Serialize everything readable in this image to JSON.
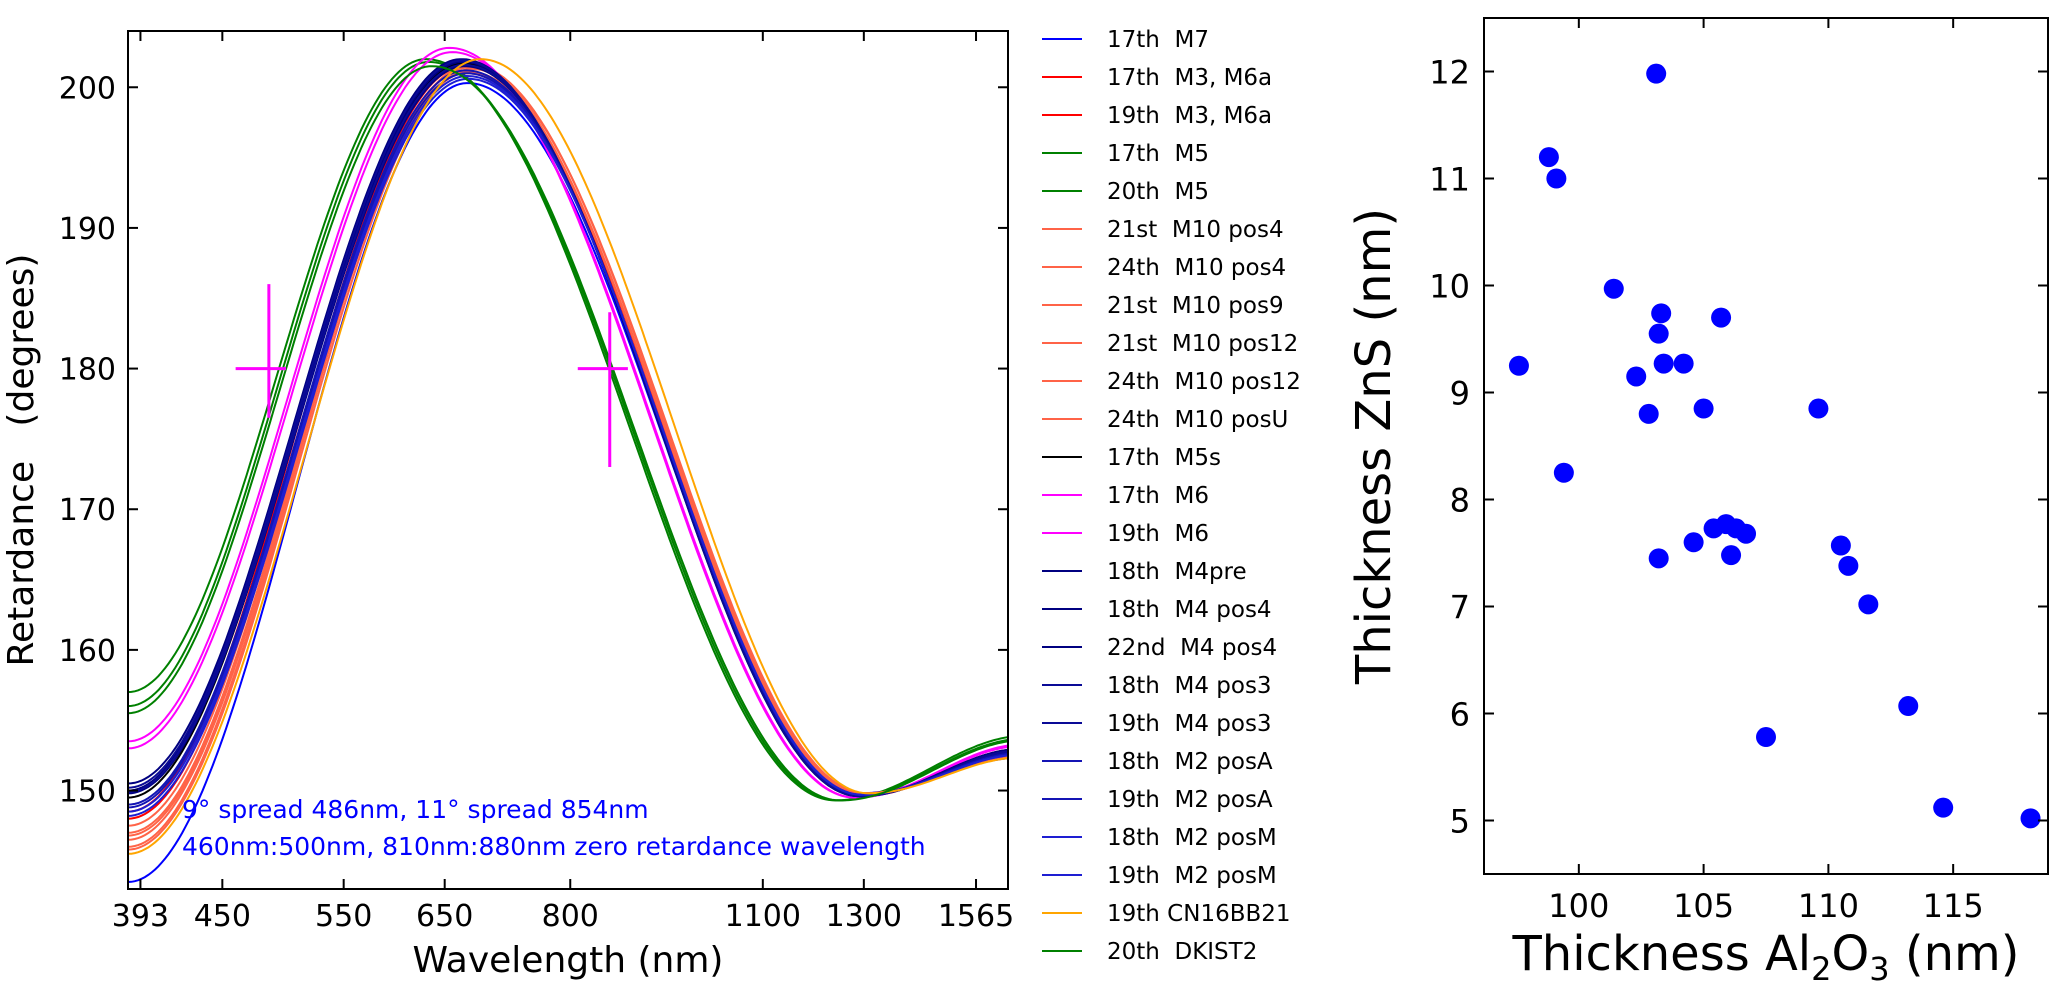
{
  "chart_data": [
    {
      "type": "line",
      "xscale": "log",
      "xlabel": "Wavelength (nm)",
      "ylabel": "Retardance   (degrees)",
      "xlim": [
        385,
        1650
      ],
      "ylim": [
        143,
        204
      ],
      "xticks": [
        393,
        450,
        550,
        650,
        800,
        1100,
        1300,
        1565
      ],
      "yticks": [
        150,
        160,
        170,
        180,
        190,
        200
      ],
      "annotations": [
        "9° spread 486nm, 11° spread 854nm",
        "460nm:500nm, 810nm:880nm  zero retardance wavelength"
      ],
      "markers": [
        {
          "name": "zero-retardance cross 486nm",
          "x": 486,
          "y": 180,
          "x_range": [
            460,
            500
          ],
          "y_range": [
            176.5,
            186
          ]
        },
        {
          "name": "zero-retardance cross 854nm",
          "x": 854,
          "y": 180,
          "x_range": [
            810,
            880
          ],
          "y_range": [
            173,
            184
          ]
        }
      ],
      "series": [
        {
          "name": "17th  M7",
          "color": "#0000ff",
          "peak_wl": 675,
          "peak": 200.3,
          "trough_wl": 1290,
          "trough": 149.8,
          "start": 143.5,
          "end": 152.3
        },
        {
          "name": "17th  M3, M6a",
          "color": "#ff0000",
          "peak_wl": 668,
          "peak": 201.8,
          "trough_wl": 1295,
          "trough": 149.6,
          "start": 148.5,
          "end": 152.8
        },
        {
          "name": "19th  M3, M6a",
          "color": "#ff0000",
          "peak_wl": 672,
          "peak": 201.5,
          "trough_wl": 1300,
          "trough": 149.7,
          "start": 148.0,
          "end": 152.6
        },
        {
          "name": "17th  M5",
          "color": "#008000",
          "peak_wl": 630,
          "peak": 202.0,
          "trough_wl": 1240,
          "trough": 149.3,
          "start": 157.0,
          "end": 153.8
        },
        {
          "name": "20th  M5",
          "color": "#008000",
          "peak_wl": 633,
          "peak": 201.8,
          "trough_wl": 1245,
          "trough": 149.3,
          "start": 156.0,
          "end": 153.6
        },
        {
          "name": "21st  M10 pos4",
          "color": "#ff6347",
          "peak_wl": 672,
          "peak": 201.2,
          "trough_wl": 1295,
          "trough": 149.7,
          "start": 147.5,
          "end": 152.7
        },
        {
          "name": "24th  M10 pos4",
          "color": "#ff6347",
          "peak_wl": 674,
          "peak": 201.0,
          "trough_wl": 1297,
          "trough": 149.7,
          "start": 147.0,
          "end": 152.6
        },
        {
          "name": "21st  M10 pos9",
          "color": "#ff6347",
          "peak_wl": 676,
          "peak": 201.4,
          "trough_wl": 1300,
          "trough": 149.8,
          "start": 146.5,
          "end": 152.5
        },
        {
          "name": "21st  M10 pos12",
          "color": "#ff6347",
          "peak_wl": 678,
          "peak": 201.6,
          "trough_wl": 1302,
          "trough": 149.8,
          "start": 146.0,
          "end": 152.5
        },
        {
          "name": "24th  M10 pos12",
          "color": "#ff6347",
          "peak_wl": 680,
          "peak": 201.3,
          "trough_wl": 1305,
          "trough": 149.8,
          "start": 145.8,
          "end": 152.4
        },
        {
          "name": "24th  M10 posU",
          "color": "#ff6347",
          "peak_wl": 677,
          "peak": 201.1,
          "trough_wl": 1300,
          "trough": 149.7,
          "start": 146.8,
          "end": 152.5
        },
        {
          "name": "17th  M5s",
          "color": "#000000",
          "peak_wl": 670,
          "peak": 201.7,
          "trough_wl": 1290,
          "trough": 149.6,
          "start": 149.5,
          "end": 152.9
        },
        {
          "name": "17th  M6",
          "color": "#ff00ff",
          "peak_wl": 655,
          "peak": 202.8,
          "trough_wl": 1280,
          "trough": 149.5,
          "start": 153.5,
          "end": 153.2
        },
        {
          "name": "19th  M6",
          "color": "#ff00ff",
          "peak_wl": 658,
          "peak": 202.5,
          "trough_wl": 1282,
          "trough": 149.5,
          "start": 153.0,
          "end": 153.1
        },
        {
          "name": "18th  M4pre",
          "color": "#000080",
          "peak_wl": 668,
          "peak": 202.0,
          "trough_wl": 1290,
          "trough": 149.6,
          "start": 150.5,
          "end": 152.9
        },
        {
          "name": "18th  M4 pos4",
          "color": "#000080",
          "peak_wl": 670,
          "peak": 201.8,
          "trough_wl": 1292,
          "trough": 149.6,
          "start": 150.0,
          "end": 152.8
        },
        {
          "name": "22nd  M4 pos4",
          "color": "#000080",
          "peak_wl": 672,
          "peak": 201.5,
          "trough_wl": 1293,
          "trough": 149.6,
          "start": 149.8,
          "end": 152.8
        },
        {
          "name": "18th  M4 pos3",
          "color": "#0a0a96",
          "peak_wl": 669,
          "peak": 201.9,
          "trough_wl": 1291,
          "trough": 149.6,
          "start": 150.2,
          "end": 152.8
        },
        {
          "name": "19th  M4 pos3",
          "color": "#0a0a96",
          "peak_wl": 671,
          "peak": 201.6,
          "trough_wl": 1292,
          "trough": 149.6,
          "start": 149.9,
          "end": 152.7
        },
        {
          "name": "18th  M2 posA",
          "color": "#1414b4",
          "peak_wl": 673,
          "peak": 201.2,
          "trough_wl": 1294,
          "trough": 149.7,
          "start": 149.0,
          "end": 152.6
        },
        {
          "name": "19th  M2 posA",
          "color": "#1414b4",
          "peak_wl": 674,
          "peak": 201.0,
          "trough_wl": 1295,
          "trough": 149.7,
          "start": 148.8,
          "end": 152.6
        },
        {
          "name": "18th  M2 posM",
          "color": "#1e1ed2",
          "peak_wl": 675,
          "peak": 200.8,
          "trough_wl": 1296,
          "trough": 149.7,
          "start": 148.5,
          "end": 152.5
        },
        {
          "name": "19th  M2 posM",
          "color": "#1e1ed2",
          "peak_wl": 676,
          "peak": 200.6,
          "trough_wl": 1297,
          "trough": 149.7,
          "start": 148.2,
          "end": 152.5
        },
        {
          "name": "19th CN16BB21",
          "color": "#ffa500",
          "peak_wl": 690,
          "peak": 202.0,
          "trough_wl": 1310,
          "trough": 149.8,
          "start": 145.5,
          "end": 152.3
        },
        {
          "name": "20th  DKIST2",
          "color": "#008000",
          "peak_wl": 636,
          "peak": 201.5,
          "trough_wl": 1250,
          "trough": 149.3,
          "start": 155.5,
          "end": 153.5
        }
      ]
    },
    {
      "type": "scatter",
      "xlabel_prefix": "Thickness Al",
      "xlabel_sub1": "2",
      "xlabel_mid": "O",
      "xlabel_sub2": "3",
      "xlabel_suffix": " (nm)",
      "ylabel": "Thickness ZnS (nm)",
      "xlim": [
        96.2,
        118.8
      ],
      "ylim": [
        4.5,
        12.5
      ],
      "xticks": [
        100,
        105,
        110,
        115
      ],
      "yticks": [
        5,
        6,
        7,
        8,
        9,
        10,
        11,
        12
      ],
      "marker_color": "#0000ff",
      "points": [
        {
          "x": 97.6,
          "y": 9.25
        },
        {
          "x": 98.8,
          "y": 11.2
        },
        {
          "x": 99.1,
          "y": 11.0
        },
        {
          "x": 99.4,
          "y": 8.25
        },
        {
          "x": 101.4,
          "y": 9.97
        },
        {
          "x": 102.3,
          "y": 9.15
        },
        {
          "x": 102.8,
          "y": 8.8
        },
        {
          "x": 103.1,
          "y": 11.98
        },
        {
          "x": 103.2,
          "y": 9.55
        },
        {
          "x": 103.3,
          "y": 9.74
        },
        {
          "x": 103.2,
          "y": 7.45
        },
        {
          "x": 103.4,
          "y": 9.27
        },
        {
          "x": 104.2,
          "y": 9.27
        },
        {
          "x": 104.6,
          "y": 7.6
        },
        {
          "x": 105.0,
          "y": 8.85
        },
        {
          "x": 105.4,
          "y": 7.73
        },
        {
          "x": 105.7,
          "y": 9.7
        },
        {
          "x": 105.9,
          "y": 7.77
        },
        {
          "x": 106.1,
          "y": 7.48
        },
        {
          "x": 106.3,
          "y": 7.73
        },
        {
          "x": 106.7,
          "y": 7.68
        },
        {
          "x": 107.5,
          "y": 5.78
        },
        {
          "x": 109.6,
          "y": 8.85
        },
        {
          "x": 110.5,
          "y": 7.57
        },
        {
          "x": 110.8,
          "y": 7.38
        },
        {
          "x": 111.6,
          "y": 7.02
        },
        {
          "x": 113.2,
          "y": 6.07
        },
        {
          "x": 114.6,
          "y": 5.12
        },
        {
          "x": 118.1,
          "y": 5.02
        }
      ]
    }
  ]
}
